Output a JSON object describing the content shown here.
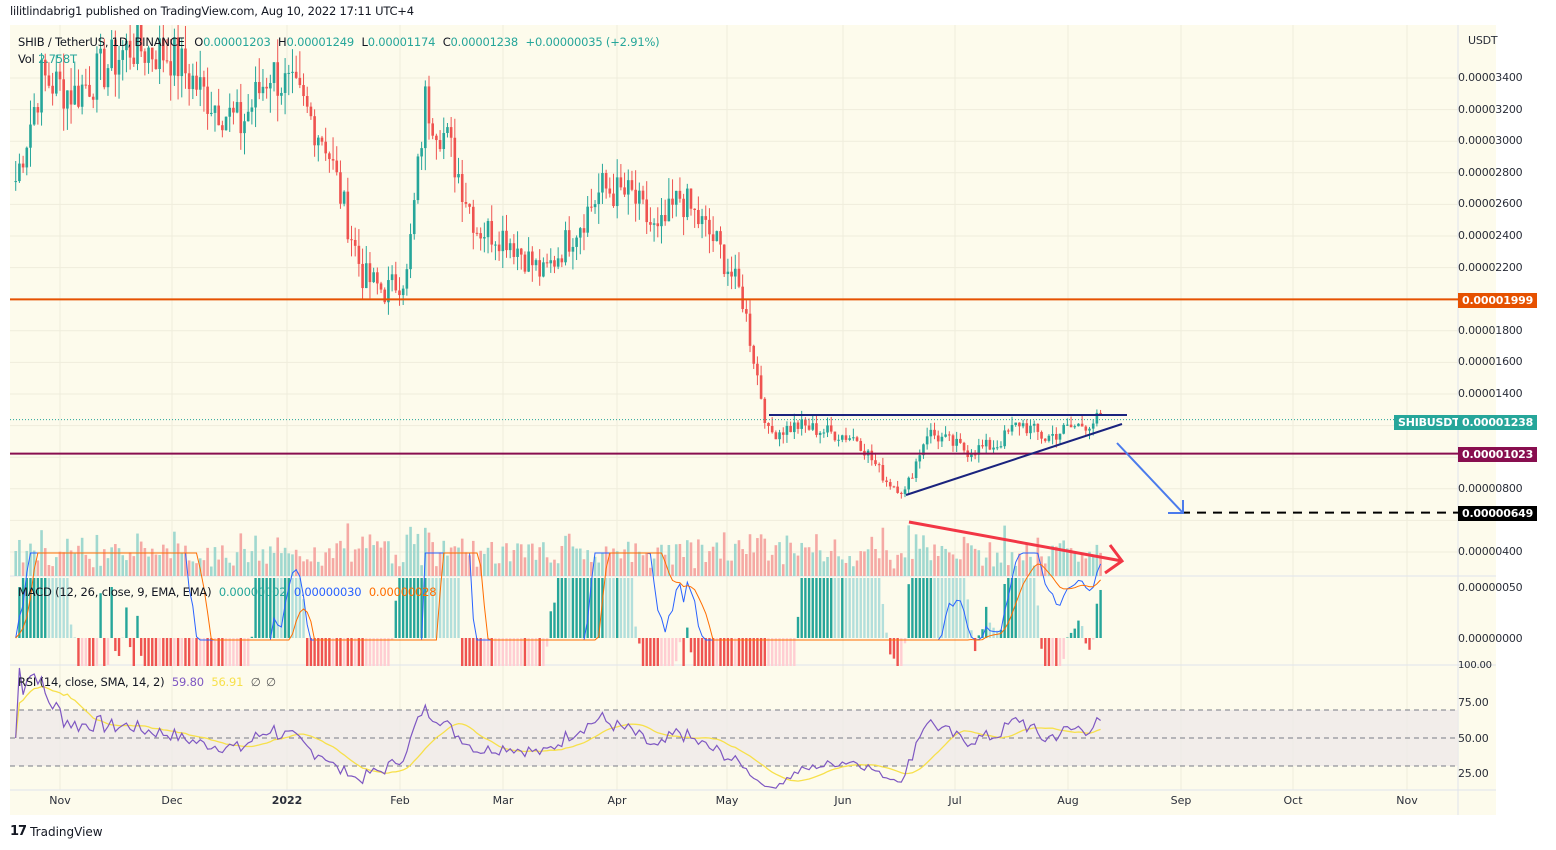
{
  "header": {
    "published_line": "lilitlindabrig1 published on TradingView.com, Aug 10, 2022 17:11 UTC+4"
  },
  "legend": {
    "symbol": "SHIB / TetherUS, 1D, BINANCE",
    "open_label": "O",
    "open": "0.00001203",
    "high_label": "H",
    "high": "0.00001249",
    "low_label": "L",
    "low": "0.00001174",
    "close_label": "C",
    "close": "0.00001238",
    "change": "+0.00000035 (+2.91%)",
    "vol_label": "Vol",
    "vol": "2.758T"
  },
  "macd_legend": {
    "label": "MACD (12, 26, close, 9, EMA, EMA)",
    "hist": "0.00000002",
    "macd": "0.00000030",
    "signal": "0.00000028"
  },
  "rsi_legend": {
    "label": "RSI (14, close, SMA, 14, 2)",
    "rsi": "59.80",
    "sma": "56.91",
    "extra1": "∅",
    "extra2": "∅"
  },
  "price_axis": {
    "currency": "USDT",
    "ticks": [
      "0.00003400",
      "0.00003200",
      "0.00003000",
      "0.00002800",
      "0.00002600",
      "0.00002400",
      "0.00002200",
      "0.00001800",
      "0.00001600",
      "0.00001400",
      "0.00000800",
      "0.00000400"
    ],
    "tags": {
      "resistance": "0.00001999",
      "current_symbol": "SHIBUSDT",
      "current": "0.00001238",
      "support": "0.00001023",
      "target": "0.00000649"
    }
  },
  "macd_axis": {
    "ticks": [
      "0.00000050",
      "0.00000000"
    ]
  },
  "rsi_axis": {
    "ticks": [
      "100.00",
      "75.00",
      "50.00",
      "25.00"
    ]
  },
  "time_axis": {
    "labels": [
      {
        "text": "Nov",
        "x": 60
      },
      {
        "text": "Dec",
        "x": 172
      },
      {
        "text": "2022",
        "x": 287,
        "year": true
      },
      {
        "text": "Feb",
        "x": 400
      },
      {
        "text": "Mar",
        "x": 503
      },
      {
        "text": "Apr",
        "x": 617
      },
      {
        "text": "May",
        "x": 727
      },
      {
        "text": "Jun",
        "x": 843
      },
      {
        "text": "Jul",
        "x": 955
      },
      {
        "text": "Aug",
        "x": 1068
      },
      {
        "text": "Sep",
        "x": 1181
      },
      {
        "text": "Oct",
        "x": 1293
      },
      {
        "text": "Nov",
        "x": 1407
      }
    ]
  },
  "footer": {
    "logo": "17",
    "brand": "TradingView"
  },
  "colors": {
    "up": "#26a69a",
    "down": "#ef5350",
    "resistance_line": "#e65100",
    "support_line": "#880e4f",
    "triangle": "#1a237e",
    "blue_arrow": "#4b7bec",
    "red_arrow": "#f23645",
    "macd_line": "#2962ff",
    "signal_line": "#ff6d00",
    "rsi_line": "#7e57c2",
    "rsi_sma": "#f7e04b"
  },
  "chart_data": {
    "type": "candlestick",
    "title": "SHIB / TetherUS, 1D, BINANCE",
    "xlabel": "",
    "ylabel": "USDT",
    "ylim": [
      3.4e-06,
      3.6e-05
    ],
    "x_range": [
      "2021-10-20",
      "2022-11-30"
    ],
    "close_path": [
      {
        "date": "2021-10-20",
        "close": 2.75e-05
      },
      {
        "date": "2021-10-27",
        "close": 3.4e-05
      },
      {
        "date": "2021-11-05",
        "close": 3.3e-05
      },
      {
        "date": "2021-11-20",
        "close": 3.6e-05
      },
      {
        "date": "2021-12-01",
        "close": 3.55e-05
      },
      {
        "date": "2021-12-10",
        "close": 3.3e-05
      },
      {
        "date": "2021-12-20",
        "close": 3.1e-05
      },
      {
        "date": "2021-12-28",
        "close": 3.45e-05
      },
      {
        "date": "2022-01-05",
        "close": 3.25e-05
      },
      {
        "date": "2022-01-12",
        "close": 3e-05
      },
      {
        "date": "2022-01-22",
        "close": 2.15e-05
      },
      {
        "date": "2022-01-28",
        "close": 2.05e-05
      },
      {
        "date": "2022-02-03",
        "close": 2.15e-05
      },
      {
        "date": "2022-02-08",
        "close": 3.25e-05
      },
      {
        "date": "2022-02-14",
        "close": 3e-05
      },
      {
        "date": "2022-02-22",
        "close": 2.45e-05
      },
      {
        "date": "2022-03-02",
        "close": 2.4e-05
      },
      {
        "date": "2022-03-12",
        "close": 2.15e-05
      },
      {
        "date": "2022-03-28",
        "close": 2.7e-05
      },
      {
        "date": "2022-04-05",
        "close": 2.65e-05
      },
      {
        "date": "2022-04-12",
        "close": 2.4e-05
      },
      {
        "date": "2022-04-18",
        "close": 2.65e-05
      },
      {
        "date": "2022-04-28",
        "close": 2.35e-05
      },
      {
        "date": "2022-05-05",
        "close": 2e-05
      },
      {
        "date": "2022-05-12",
        "close": 1.15e-05
      },
      {
        "date": "2022-05-20",
        "close": 1.2e-05
      },
      {
        "date": "2022-06-05",
        "close": 1.12e-05
      },
      {
        "date": "2022-06-13",
        "close": 8.5e-06
      },
      {
        "date": "2022-06-18",
        "close": 7.8e-06
      },
      {
        "date": "2022-06-24",
        "close": 1.16e-05
      },
      {
        "date": "2022-07-05",
        "close": 1.04e-05
      },
      {
        "date": "2022-07-13",
        "close": 1.08e-05
      },
      {
        "date": "2022-07-19",
        "close": 1.22e-05
      },
      {
        "date": "2022-07-26",
        "close": 1.12e-05
      },
      {
        "date": "2022-08-01",
        "close": 1.18e-05
      },
      {
        "date": "2022-08-10",
        "close": 1.24e-05
      }
    ],
    "horizontal_lines": [
      {
        "name": "resistance",
        "value": 1.999e-05,
        "color": "#e65100"
      },
      {
        "name": "support",
        "value": 1.023e-05,
        "color": "#880e4f"
      },
      {
        "name": "target",
        "value": 6.49e-06,
        "style": "dashed",
        "color": "#000000"
      }
    ],
    "annotations": [
      {
        "type": "ascending-triangle",
        "top": 1.26e-05,
        "bottom_start": {
          "date": "2022-06-18",
          "value": 7.8e-06
        },
        "bottom_end": {
          "date": "2022-08-15",
          "value": 1.21e-05
        }
      },
      {
        "type": "arrow",
        "color": "blue",
        "from": {
          "date": "2022-08-16",
          "value": 1.1e-05
        },
        "to": {
          "date": "2022-09-01",
          "value": 6.5e-06
        }
      },
      {
        "type": "arrow",
        "color": "red",
        "pane": "volume",
        "direction": "down",
        "from": "2022-06-19",
        "to": "2022-08-17"
      }
    ],
    "indicators": {
      "volume": {
        "last": "2.758T"
      },
      "macd": {
        "params": "12, 26, close, 9, EMA, EMA",
        "hist": 2e-08,
        "macd": 3e-07,
        "signal": 2.8e-07
      },
      "rsi": {
        "params": "14, close, SMA, 14, 2",
        "value": 59.8,
        "sma": 56.91,
        "bands": [
          30,
          50,
          70
        ],
        "ylim": [
          0,
          100
        ]
      }
    }
  }
}
